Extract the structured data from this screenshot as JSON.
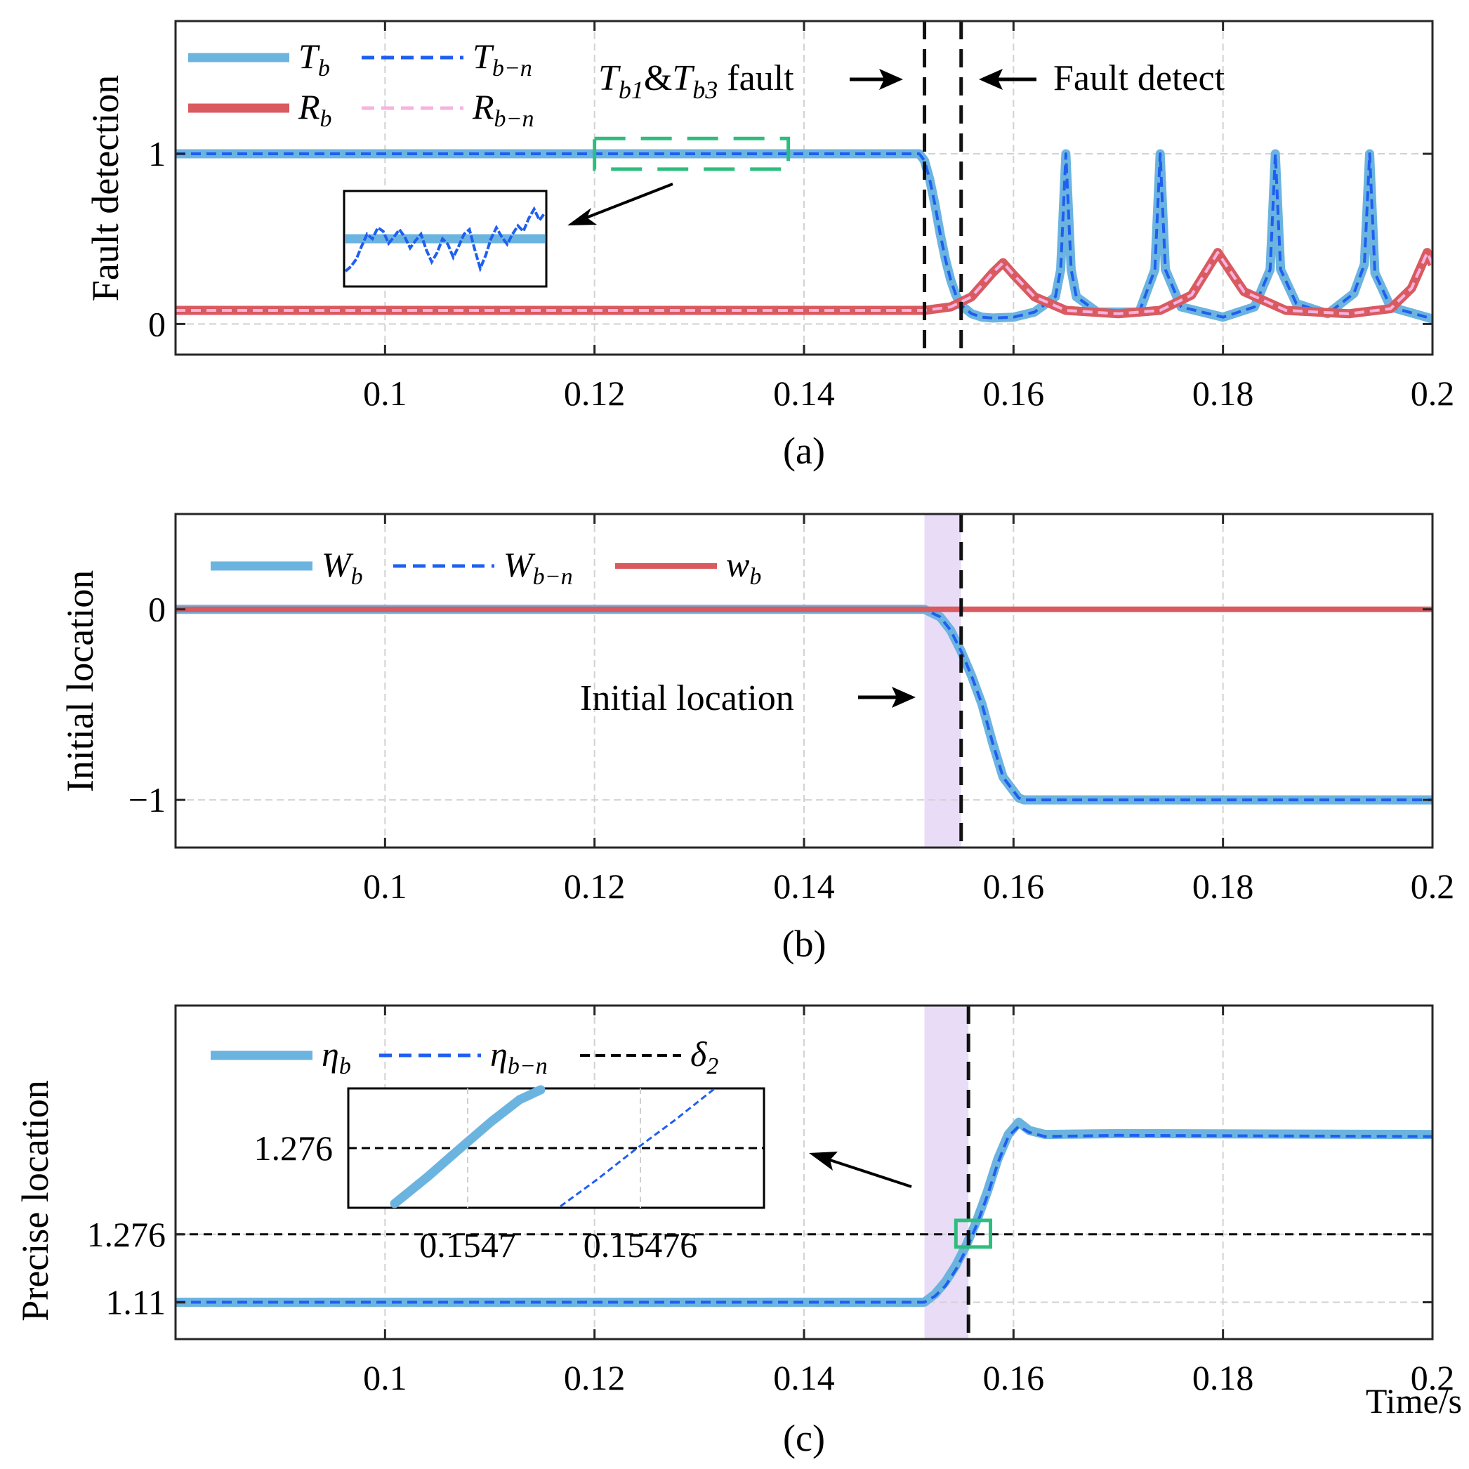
{
  "chart_data": [
    {
      "id": "a",
      "type": "line",
      "caption": "(a)",
      "ylabel": "Fault detection",
      "xlim": [
        0.08,
        0.2
      ],
      "ylim": [
        -0.18,
        1.78
      ],
      "xticks": [
        0.1,
        0.12,
        0.14,
        0.16,
        0.18,
        0.2
      ],
      "xtick_labels": [
        "0.1",
        "0.12",
        "0.14",
        "0.16",
        "0.18",
        "0.2"
      ],
      "yticks": [
        0,
        1
      ],
      "ytick_labels": [
        "0",
        "1"
      ],
      "series": [
        {
          "name": "T_b",
          "label_main": "T",
          "label_sub": "b",
          "color": "#6CB4E0",
          "style": "solid-thick",
          "x": [
            0.08,
            0.151,
            0.1515,
            0.152,
            0.1525,
            0.153,
            0.1535,
            0.154,
            0.1545,
            0.155,
            0.156,
            0.157,
            0.158,
            0.16,
            0.162,
            0.164,
            0.1645,
            0.165,
            0.1655,
            0.166,
            0.168,
            0.172,
            0.1735,
            0.174,
            0.1745,
            0.176,
            0.18,
            0.183,
            0.1845,
            0.185,
            0.1855,
            0.187,
            0.19,
            0.1925,
            0.1935,
            0.194,
            0.1945,
            0.196,
            0.2
          ],
          "y": [
            1,
            1,
            0.96,
            0.85,
            0.7,
            0.53,
            0.38,
            0.26,
            0.17,
            0.11,
            0.06,
            0.04,
            0.035,
            0.04,
            0.07,
            0.16,
            0.32,
            1.0,
            0.32,
            0.16,
            0.07,
            0.07,
            0.32,
            1.0,
            0.32,
            0.1,
            0.04,
            0.1,
            0.32,
            1.0,
            0.32,
            0.12,
            0.06,
            0.18,
            0.35,
            1.0,
            0.3,
            0.1,
            0.03
          ]
        },
        {
          "name": "T_b-n",
          "label_main": "T",
          "label_sub": "b−n",
          "color": "#1F5FF0",
          "style": "dashed",
          "x": [
            0.08,
            0.151,
            0.1515,
            0.152,
            0.1525,
            0.153,
            0.1535,
            0.154,
            0.1545,
            0.155,
            0.156,
            0.157,
            0.158,
            0.16,
            0.162,
            0.164,
            0.1645,
            0.165,
            0.1655,
            0.166,
            0.168,
            0.172,
            0.1735,
            0.174,
            0.1745,
            0.176,
            0.18,
            0.183,
            0.1845,
            0.185,
            0.1855,
            0.187,
            0.19,
            0.1925,
            0.1935,
            0.194,
            0.1945,
            0.196,
            0.2
          ],
          "y": [
            1,
            1,
            0.96,
            0.85,
            0.7,
            0.53,
            0.38,
            0.26,
            0.17,
            0.11,
            0.06,
            0.04,
            0.035,
            0.04,
            0.07,
            0.16,
            0.32,
            1.0,
            0.32,
            0.16,
            0.07,
            0.07,
            0.32,
            1.0,
            0.32,
            0.1,
            0.04,
            0.1,
            0.32,
            1.0,
            0.32,
            0.12,
            0.06,
            0.18,
            0.35,
            1.0,
            0.3,
            0.1,
            0.03
          ]
        },
        {
          "name": "R_b",
          "label_main": "R",
          "label_sub": "b",
          "color": "#D95A5F",
          "style": "solid-thick",
          "x": [
            0.08,
            0.1515,
            0.154,
            0.156,
            0.158,
            0.159,
            0.16,
            0.162,
            0.165,
            0.17,
            0.174,
            0.177,
            0.1795,
            0.182,
            0.186,
            0.192,
            0.196,
            0.198,
            0.1995,
            0.2
          ],
          "y": [
            0.08,
            0.08,
            0.1,
            0.16,
            0.3,
            0.36,
            0.29,
            0.16,
            0.08,
            0.06,
            0.08,
            0.17,
            0.42,
            0.19,
            0.08,
            0.06,
            0.09,
            0.21,
            0.42,
            0.35
          ]
        },
        {
          "name": "R_b-n",
          "label_main": "R",
          "label_sub": "b−n",
          "color": "#F7B2E2",
          "style": "dashed",
          "x": [
            0.08,
            0.1515,
            0.154,
            0.156,
            0.158,
            0.159,
            0.16,
            0.162,
            0.165,
            0.17,
            0.174,
            0.177,
            0.1795,
            0.182,
            0.186,
            0.192,
            0.196,
            0.198,
            0.1995,
            0.2
          ],
          "y": [
            0.08,
            0.08,
            0.1,
            0.16,
            0.3,
            0.36,
            0.29,
            0.16,
            0.08,
            0.06,
            0.08,
            0.17,
            0.42,
            0.19,
            0.08,
            0.06,
            0.09,
            0.21,
            0.42,
            0.35
          ]
        }
      ],
      "vlines": [
        {
          "x": 0.1515,
          "label": "fault"
        },
        {
          "x": 0.155,
          "label": "detect"
        }
      ],
      "annotations": {
        "fault_text_main1": "T",
        "fault_text_sub1": "b1",
        "fault_text_amp": "&",
        "fault_text_main2": "T",
        "fault_text_sub2": "b3",
        "fault_text_tail": " fault",
        "detect_text": "Fault detect"
      },
      "zoom_box_range": {
        "x": [
          0.12,
          0.1385
        ],
        "y": [
          0.91,
          1.09
        ]
      },
      "inset_trace": [
        0.15,
        0.2,
        0.28,
        0.42,
        0.55,
        0.5,
        0.62,
        0.58,
        0.45,
        0.52,
        0.6,
        0.52,
        0.4,
        0.48,
        0.55,
        0.38,
        0.25,
        0.35,
        0.5,
        0.44,
        0.3,
        0.42,
        0.55,
        0.6,
        0.38,
        0.18,
        0.32,
        0.5,
        0.62,
        0.52,
        0.44,
        0.55,
        0.64,
        0.58,
        0.72,
        0.82,
        0.7,
        0.78
      ],
      "inset_level": 0.5
    },
    {
      "id": "b",
      "type": "line",
      "caption": "(b)",
      "ylabel": "Initial location",
      "xlim": [
        0.08,
        0.2
      ],
      "ylim": [
        -1.25,
        0.5
      ],
      "xticks": [
        0.1,
        0.12,
        0.14,
        0.16,
        0.18,
        0.2
      ],
      "xtick_labels": [
        "0.1",
        "0.12",
        "0.14",
        "0.16",
        "0.18",
        "0.2"
      ],
      "yticks": [
        0,
        -1
      ],
      "ytick_labels": [
        "0",
        "−1"
      ],
      "series": [
        {
          "name": "W_b",
          "label_main": "W",
          "label_sub": "b",
          "color": "#6CB4E0",
          "style": "solid-thick",
          "x": [
            0.08,
            0.1515,
            0.153,
            0.154,
            0.155,
            0.156,
            0.157,
            0.158,
            0.159,
            0.1605,
            0.161,
            0.2
          ],
          "y": [
            0,
            0,
            -0.04,
            -0.11,
            -0.22,
            -0.35,
            -0.5,
            -0.7,
            -0.88,
            -0.99,
            -1,
            -1
          ]
        },
        {
          "name": "W_b-n",
          "label_main": "W",
          "label_sub": "b−n",
          "color": "#1F5FF0",
          "style": "dashed",
          "x": [
            0.08,
            0.1515,
            0.153,
            0.154,
            0.155,
            0.156,
            0.157,
            0.158,
            0.159,
            0.1605,
            0.161,
            0.2
          ],
          "y": [
            0,
            0,
            -0.04,
            -0.11,
            -0.22,
            -0.35,
            -0.5,
            -0.7,
            -0.88,
            -0.99,
            -1,
            -1
          ]
        },
        {
          "name": "w_b",
          "label_main": "w",
          "label_sub": "b",
          "color": "#D95A5F",
          "style": "solid",
          "x": [
            0.08,
            0.2
          ],
          "y": [
            0,
            0
          ]
        }
      ],
      "shade": {
        "x": [
          0.1515,
          0.155
        ],
        "color": "#E9DCF7"
      },
      "vlines": [
        {
          "x": 0.155,
          "label": "detect"
        }
      ],
      "annotations": {
        "initial_text": "Initial location"
      }
    },
    {
      "id": "c",
      "type": "line",
      "caption": "(c)",
      "ylabel": "Precise location",
      "xlabel": "Time/s",
      "xlim": [
        0.08,
        0.2
      ],
      "ylim": [
        1.02,
        1.835
      ],
      "xticks": [
        0.1,
        0.12,
        0.14,
        0.16,
        0.18,
        0.2
      ],
      "xtick_labels": [
        "0.1",
        "0.12",
        "0.14",
        "0.16",
        "0.18",
        "0.2"
      ],
      "yticks": [
        1.11,
        1.276
      ],
      "ytick_labels": [
        "1.11",
        "1.276"
      ],
      "series": [
        {
          "name": "eta_b",
          "label_main": "η",
          "label_sub": "b",
          "color": "#6CB4E0",
          "style": "solid-thick",
          "x": [
            0.08,
            0.1515,
            0.1525,
            0.1535,
            0.1545,
            0.1555,
            0.1565,
            0.1575,
            0.1585,
            0.1595,
            0.1605,
            0.1615,
            0.163,
            0.17,
            0.2
          ],
          "y": [
            1.11,
            1.11,
            1.13,
            1.16,
            1.2,
            1.25,
            1.31,
            1.38,
            1.46,
            1.52,
            1.55,
            1.53,
            1.52,
            1.522,
            1.52
          ]
        },
        {
          "name": "eta_b-n",
          "label_main": "η",
          "label_sub": "b−n",
          "color": "#1F5FF0",
          "style": "dashed",
          "x": [
            0.08,
            0.1515,
            0.1525,
            0.1535,
            0.1545,
            0.1555,
            0.1565,
            0.1575,
            0.1585,
            0.1595,
            0.1605,
            0.1615,
            0.163,
            0.17,
            0.2
          ],
          "y": [
            1.11,
            1.11,
            1.125,
            1.15,
            1.19,
            1.24,
            1.3,
            1.37,
            1.45,
            1.515,
            1.54,
            1.525,
            1.515,
            1.518,
            1.515
          ]
        },
        {
          "name": "delta_2",
          "label_main": "δ",
          "label_sub": "2",
          "color": "#000000",
          "style": "dashed-thin",
          "x": [
            0.08,
            0.2
          ],
          "y": [
            1.276,
            1.276
          ]
        }
      ],
      "shade": {
        "x": [
          0.1515,
          0.1557
        ],
        "color": "#E9DCF7"
      },
      "vlines": [
        {
          "x": 0.1557,
          "label": "precise"
        }
      ],
      "zoom_box_range": {
        "x": [
          0.1545,
          0.1578
        ],
        "y": [
          1.245,
          1.31
        ]
      },
      "inset": {
        "ytick_label": "1.276",
        "xtick_labels": [
          "0.1547",
          "0.15476"
        ]
      }
    }
  ]
}
